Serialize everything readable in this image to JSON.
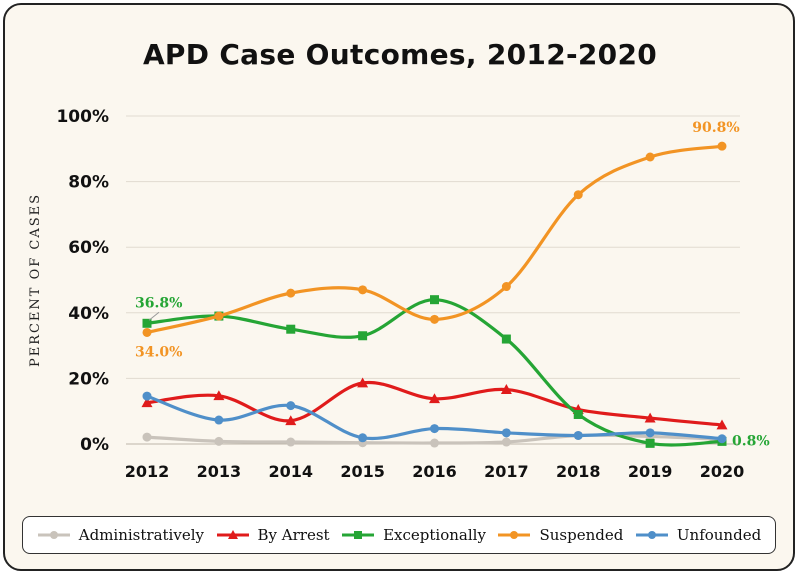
{
  "chart_data": {
    "type": "line",
    "title": "APD Case Outcomes, 2012-2020",
    "xlabel": "",
    "ylabel": "PERCENT OF CASES",
    "x": [
      "2012",
      "2013",
      "2014",
      "2015",
      "2016",
      "2017",
      "2018",
      "2019",
      "2020"
    ],
    "ylim": [
      0,
      100
    ],
    "yticks": [
      "0%",
      "20%",
      "40%",
      "60%",
      "80%",
      "100%"
    ],
    "grid": "horizontal",
    "legend_position": "bottom",
    "series": [
      {
        "name": "Administratively",
        "color": "#c9c3bb",
        "marker": "circle",
        "values": [
          2.1,
          0.8,
          0.6,
          0.4,
          0.3,
          0.6,
          2.6,
          2.3,
          1.4
        ]
      },
      {
        "name": "By Arrest",
        "color": "#e01b1b",
        "marker": "triangle",
        "values": [
          12.6,
          14.7,
          7.1,
          18.6,
          13.8,
          16.6,
          10.5,
          7.9,
          5.8
        ]
      },
      {
        "name": "Exceptionally",
        "color": "#25a535",
        "marker": "square",
        "values": [
          36.8,
          39.0,
          35.0,
          33.0,
          44.0,
          32.0,
          9.0,
          0.2,
          0.8
        ]
      },
      {
        "name": "Suspended",
        "color": "#f29424",
        "marker": "circle",
        "values": [
          34.0,
          39.0,
          46.0,
          47.0,
          38.0,
          48.0,
          76.0,
          87.5,
          90.8
        ]
      },
      {
        "name": "Unfounded",
        "color": "#4f8fc9",
        "marker": "circle",
        "values": [
          14.6,
          7.3,
          11.7,
          1.9,
          4.7,
          3.4,
          2.6,
          3.4,
          1.6
        ]
      }
    ],
    "annotations": [
      {
        "text": "36.8%",
        "series": "Exceptionally",
        "x": "2012",
        "color": "#25a535"
      },
      {
        "text": "34.0%",
        "series": "Suspended",
        "x": "2012",
        "color": "#f29424"
      },
      {
        "text": "90.8%",
        "series": "Suspended",
        "x": "2020",
        "color": "#f29424"
      },
      {
        "text": "0.8%",
        "series": "Exceptionally",
        "x": "2020",
        "color": "#25a535"
      }
    ]
  }
}
